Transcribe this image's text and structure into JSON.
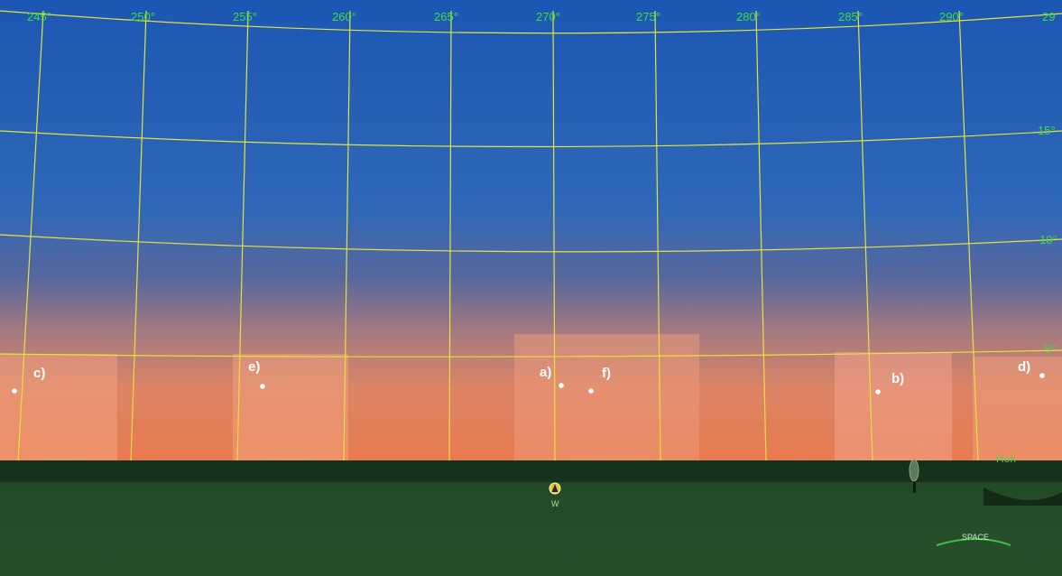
{
  "azimuth_labels": [
    "245°",
    "250°",
    "255°",
    "260°",
    "265°",
    "270°",
    "275°",
    "280°",
    "285°",
    "290°",
    "29"
  ],
  "altitude_labels": [
    "15°",
    "10°",
    "5°"
  ],
  "horizon_label": "Hori",
  "objects": [
    "a)",
    "b)",
    "c)",
    "d)",
    "e)",
    "f)"
  ],
  "compass": {
    "direction": "W",
    "icon": "compass-marker-icon"
  },
  "badge": {
    "label": "SPACE"
  },
  "colors": {
    "grid": "#e6e23a",
    "label_green": "#3fdc3f",
    "sky_top": "#1f5fb5",
    "sky_mid": "#6c6a9e",
    "horizon_glow": "#ea8a5c",
    "ground": "#1f4424"
  }
}
